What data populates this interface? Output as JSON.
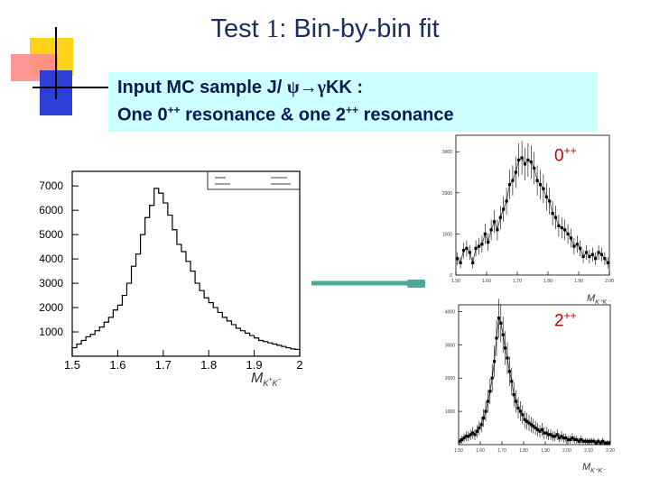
{
  "slide": {
    "title_prefix": "Test ",
    "title_number": "1",
    "title_suffix": ": Bin-by-bin fit",
    "info_line1_prefix": "Input MC sample J/ ",
    "info_line1_psi": "ψ",
    "info_line1_arrow": "→",
    "info_line1_gamma": "γ",
    "info_line1_suffix": "KK :",
    "info_line2_a": "One 0",
    "info_line2_sup1": "++",
    "info_line2_b": " resonance & one 2",
    "info_line2_sup2": "++",
    "info_line2_c": " resonance",
    "label_0pp_base": "0",
    "label_0pp_sup": "++",
    "label_2pp_base": "2",
    "label_2pp_sup": "++",
    "colors": {
      "title": "#1c2d66",
      "info_bg": "#ccffff",
      "arrow": "#4da899",
      "label": "#c00000"
    }
  },
  "chart_data": [
    {
      "type": "histogram",
      "xlabel": "M_{K+K-}",
      "xlim": [
        1.5,
        2.0
      ],
      "ylim": [
        0,
        7600
      ],
      "xticks": [
        "1.5",
        "1.6",
        "1.7",
        "1.8",
        "1.9",
        "2"
      ],
      "yticks": [
        "1000",
        "2000",
        "3000",
        "4000",
        "5000",
        "6000",
        "7000"
      ],
      "x": [
        1.5,
        1.51,
        1.52,
        1.53,
        1.54,
        1.55,
        1.56,
        1.57,
        1.58,
        1.59,
        1.6,
        1.61,
        1.62,
        1.63,
        1.64,
        1.65,
        1.66,
        1.67,
        1.68,
        1.69,
        1.7,
        1.71,
        1.72,
        1.73,
        1.74,
        1.75,
        1.76,
        1.77,
        1.78,
        1.79,
        1.8,
        1.81,
        1.82,
        1.83,
        1.84,
        1.85,
        1.86,
        1.87,
        1.88,
        1.89,
        1.9,
        1.91,
        1.92,
        1.93,
        1.94,
        1.95,
        1.96,
        1.97,
        1.98,
        1.99
      ],
      "values": [
        350,
        500,
        650,
        800,
        900,
        1050,
        1200,
        1400,
        1600,
        1900,
        2100,
        2500,
        3000,
        3700,
        4200,
        5000,
        5700,
        6200,
        6900,
        6700,
        6300,
        5800,
        5200,
        4600,
        4300,
        3900,
        3500,
        3000,
        2700,
        2400,
        2200,
        2000,
        1800,
        1600,
        1450,
        1300,
        1150,
        1050,
        950,
        850,
        750,
        650,
        600,
        550,
        500,
        450,
        400,
        350,
        300,
        280
      ]
    },
    {
      "type": "scatter",
      "label": "0++",
      "xlabel": "M_{K+K-}",
      "xlim": [
        1.5,
        2.0
      ],
      "ylim": [
        0,
        3400
      ],
      "xticks": [
        "1.50",
        "1.60",
        "1.70",
        "1.80",
        "1.90",
        "2.00"
      ],
      "yticks": [
        "0",
        "1000",
        "2000",
        "3000"
      ],
      "x": [
        1.5,
        1.51,
        1.52,
        1.53,
        1.54,
        1.55,
        1.56,
        1.57,
        1.58,
        1.59,
        1.6,
        1.61,
        1.62,
        1.63,
        1.64,
        1.65,
        1.66,
        1.67,
        1.68,
        1.69,
        1.7,
        1.71,
        1.72,
        1.73,
        1.74,
        1.75,
        1.76,
        1.77,
        1.78,
        1.79,
        1.8,
        1.81,
        1.82,
        1.83,
        1.84,
        1.85,
        1.86,
        1.87,
        1.88,
        1.89,
        1.9,
        1.91,
        1.92,
        1.93,
        1.94,
        1.95,
        1.96,
        1.97,
        1.98,
        1.99
      ],
      "values": [
        400,
        300,
        600,
        650,
        550,
        300,
        650,
        700,
        750,
        1000,
        800,
        1100,
        1300,
        1100,
        1400,
        1600,
        1800,
        2200,
        2300,
        2500,
        2800,
        2850,
        2700,
        2800,
        2750,
        2600,
        2300,
        2200,
        2100,
        1900,
        1800,
        1500,
        1400,
        1200,
        1150,
        1100,
        1000,
        900,
        700,
        750,
        650,
        450,
        550,
        450,
        500,
        400,
        550,
        500,
        400,
        300
      ]
    },
    {
      "type": "scatter",
      "label": "2++",
      "xlabel": "M_{K+K-}",
      "xlim": [
        1.5,
        2.2
      ],
      "ylim": [
        0,
        4200
      ],
      "xticks": [
        "1.50",
        "1.60",
        "1.70",
        "1.80",
        "1.90",
        "2.00",
        "2.10",
        "2.20"
      ],
      "yticks": [
        "1000",
        "2000",
        "3000",
        "4000"
      ],
      "x": [
        1.5,
        1.51,
        1.52,
        1.53,
        1.54,
        1.55,
        1.56,
        1.57,
        1.58,
        1.59,
        1.6,
        1.61,
        1.62,
        1.63,
        1.64,
        1.65,
        1.66,
        1.67,
        1.68,
        1.69,
        1.7,
        1.71,
        1.72,
        1.73,
        1.74,
        1.75,
        1.76,
        1.77,
        1.78,
        1.79,
        1.8,
        1.81,
        1.82,
        1.83,
        1.84,
        1.85,
        1.86,
        1.87,
        1.88,
        1.89,
        1.9,
        1.91,
        1.92,
        1.93,
        1.94,
        1.95,
        1.96,
        1.97,
        1.98,
        1.99,
        2.0,
        2.01,
        2.02,
        2.03,
        2.04,
        2.05,
        2.06,
        2.07,
        2.08,
        2.09,
        2.1,
        2.11,
        2.12,
        2.13,
        2.14,
        2.15,
        2.16,
        2.17,
        2.18,
        2.19
      ],
      "values": [
        100,
        150,
        200,
        250,
        250,
        300,
        350,
        300,
        400,
        500,
        600,
        800,
        1000,
        1300,
        1600,
        2000,
        2500,
        3200,
        3800,
        3650,
        3300,
        2900,
        2600,
        2200,
        1900,
        1500,
        1300,
        1100,
        1000,
        900,
        750,
        700,
        650,
        600,
        550,
        500,
        450,
        400,
        450,
        350,
        350,
        300,
        300,
        250,
        250,
        300,
        200,
        250,
        200,
        200,
        150,
        150,
        200,
        150,
        150,
        100,
        150,
        100,
        100,
        100,
        100,
        100,
        100,
        50,
        100,
        50,
        100,
        50,
        50,
        50
      ]
    }
  ]
}
